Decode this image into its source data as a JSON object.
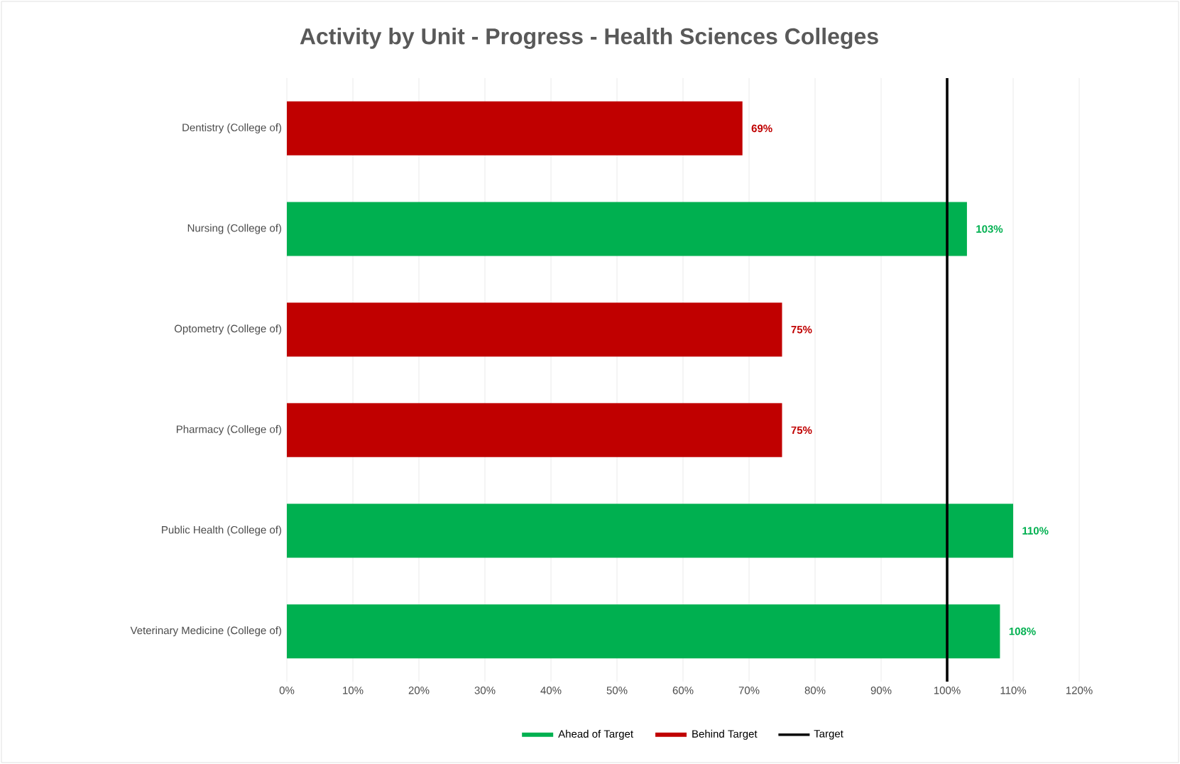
{
  "chart_data": {
    "type": "bar",
    "orientation": "horizontal",
    "title": "Activity by Unit - Progress - Health Sciences Colleges",
    "categories": [
      "Dentistry (College of)",
      "Nursing (College of)",
      "Optometry (College of)",
      "Pharmacy (College of)",
      "Public Health (College of)",
      "Veterinary Medicine (College of)"
    ],
    "series": [
      {
        "name": "Ahead of Target",
        "color": "#00b050",
        "values": [
          null,
          103,
          null,
          null,
          110,
          108
        ],
        "value_labels": [
          null,
          "103%",
          null,
          null,
          "110%",
          "108%"
        ]
      },
      {
        "name": "Behind Target",
        "color": "#c00000",
        "values": [
          69,
          null,
          75,
          75,
          null,
          null
        ],
        "value_labels": [
          "69%",
          null,
          "75%",
          "75%",
          null,
          null
        ]
      }
    ],
    "ref_lines": [
      {
        "axis": "x",
        "value": 100,
        "label": "Target",
        "color": "#000000"
      }
    ],
    "xlim": [
      0,
      120
    ],
    "xticks": [
      {
        "value": 0,
        "label": "0%"
      },
      {
        "value": 10,
        "label": "10%"
      },
      {
        "value": 20,
        "label": "20%"
      },
      {
        "value": 30,
        "label": "30%"
      },
      {
        "value": 40,
        "label": "40%"
      },
      {
        "value": 50,
        "label": "50%"
      },
      {
        "value": 60,
        "label": "60%"
      },
      {
        "value": 70,
        "label": "70%"
      },
      {
        "value": 80,
        "label": "80%"
      },
      {
        "value": 90,
        "label": "90%"
      },
      {
        "value": 100,
        "label": "100%"
      },
      {
        "value": 110,
        "label": "110%"
      },
      {
        "value": 120,
        "label": "120%"
      }
    ],
    "grid": "x",
    "legend": "bottom"
  }
}
